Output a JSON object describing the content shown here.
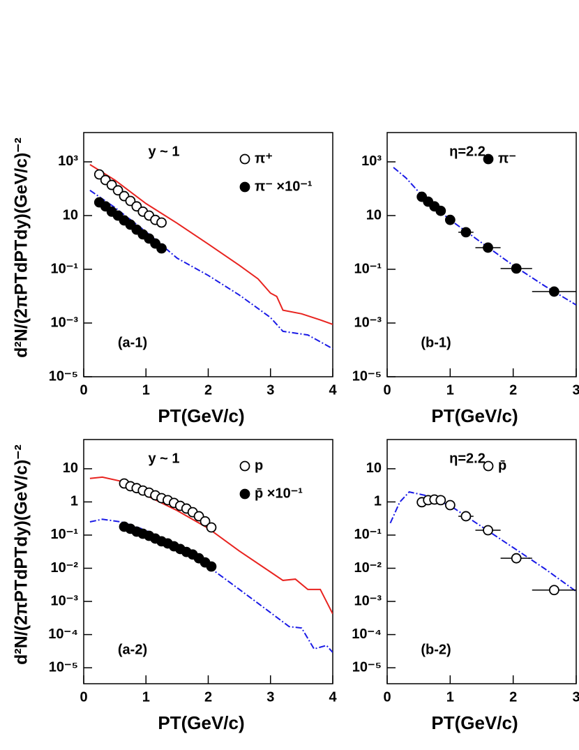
{
  "chart_data": [
    {
      "type": "scatter",
      "log_y": true,
      "xlim": [
        0,
        4
      ],
      "ylim": [
        1e-05,
        12300
      ],
      "xticks": [
        0,
        1,
        2,
        3,
        4
      ],
      "yticks": [
        {
          "value": 1e-05,
          "label": "10⁻⁵"
        },
        {
          "value": 0.001,
          "label": "10⁻³"
        },
        {
          "value": 0.1,
          "label": "10⁻¹"
        },
        10,
        {
          "value": 1000,
          "label": "10³"
        }
      ],
      "xlabel": "PT(GeV/c)",
      "ylabel": "d²N/(2πPTdPTdy)(GeV/c)⁻²",
      "annotations": [
        "y ~ 1",
        "(a-1)"
      ],
      "legend": "upper right",
      "series": [
        {
          "name": "π⁺",
          "marker": "open",
          "color": "#000000",
          "x": [
            0.25,
            0.35,
            0.45,
            0.55,
            0.65,
            0.75,
            0.85,
            0.95,
            1.05,
            1.15,
            1.25
          ],
          "values": [
            340,
            210,
            138,
            87,
            53,
            35,
            22,
            14,
            10,
            6.9,
            5.5
          ]
        },
        {
          "name": "π⁻ ×10⁻¹",
          "marker": "filled",
          "color": "#000000",
          "x": [
            0.25,
            0.35,
            0.45,
            0.55,
            0.65,
            0.75,
            0.85,
            0.95,
            1.05,
            1.15,
            1.25
          ],
          "values": [
            31,
            22,
            14,
            10,
            6.6,
            4.6,
            3.0,
            2.0,
            1.4,
            0.91,
            0.6
          ]
        },
        {
          "linestyle": "solid",
          "color": "#e8231f",
          "x": [
            0.1,
            0.5,
            1,
            1.5,
            2,
            2.5,
            2.8,
            3,
            3.1,
            3.2,
            3.5,
            3.8,
            4
          ],
          "values": [
            790,
            210,
            28,
            5.2,
            0.87,
            0.14,
            0.044,
            0.013,
            0.0098,
            0.003,
            0.0022,
            0.0013,
            0.00089
          ]
        },
        {
          "linestyle": "dashdot",
          "color": "#1a1ae6",
          "x": [
            0.1,
            0.5,
            1,
            1.5,
            2,
            2.5,
            3,
            3.2,
            3.6,
            3.8,
            4
          ],
          "values": [
            87,
            20,
            2.5,
            0.26,
            0.059,
            0.011,
            0.0016,
            0.00049,
            0.00036,
            0.0002,
            0.00011
          ]
        }
      ]
    },
    {
      "type": "scatter",
      "log_y": true,
      "xlim": [
        0,
        3
      ],
      "ylim": [
        1e-05,
        12300
      ],
      "xticks": [
        0,
        1,
        2,
        3
      ],
      "yticks": [
        {
          "value": 1e-05,
          "label": "10⁻⁵"
        },
        {
          "value": 0.001,
          "label": "10⁻³"
        },
        {
          "value": 0.1,
          "label": "10⁻¹"
        },
        10,
        {
          "value": 1000,
          "label": "10³"
        }
      ],
      "xlabel": "PT(GeV/c)",
      "annotations": [
        "η=2.2",
        "(b-1)"
      ],
      "legend": "upper right",
      "series": [
        {
          "name": "π⁻",
          "marker": "filled",
          "color": "#000000",
          "x": [
            0.55,
            0.65,
            0.75,
            0.85,
            1.0,
            1.25,
            1.6,
            2.05,
            2.65
          ],
          "values": [
            50,
            33,
            22,
            15,
            6.9,
            2.4,
            0.64,
            0.107,
            0.0148
          ],
          "xerr": [
            0.05,
            0.05,
            0.05,
            0.05,
            0.05,
            0.12,
            0.2,
            0.25,
            0.35
          ]
        },
        {
          "linestyle": "dashdot",
          "color": "#1a1ae6",
          "x": [
            0.1,
            0.3,
            0.6,
            1,
            1.5,
            2,
            2.5,
            3
          ],
          "values": [
            620,
            250,
            42,
            6.9,
            0.97,
            0.14,
            0.024,
            0.0047
          ]
        }
      ]
    },
    {
      "type": "scatter",
      "log_y": true,
      "xlim": [
        0,
        4
      ],
      "ylim": [
        3.3e-06,
        76
      ],
      "xticks": [
        0,
        1,
        2,
        3,
        4
      ],
      "yticks": [
        {
          "value": 1e-05,
          "label": "10⁻⁵"
        },
        {
          "value": 0.0001,
          "label": "10⁻⁴"
        },
        {
          "value": 0.001,
          "label": "10⁻³"
        },
        {
          "value": 0.01,
          "label": "10⁻²"
        },
        {
          "value": 0.1,
          "label": "10⁻¹"
        },
        1,
        10
      ],
      "xlabel": "PT(GeV/c)",
      "ylabel": "d²N/(2πPTdPTdy)(GeV/c)⁻²",
      "annotations": [
        "y ~ 1",
        "(a-2)"
      ],
      "legend": "upper right",
      "series": [
        {
          "name": "p",
          "marker": "open",
          "color": "#000000",
          "x": [
            0.65,
            0.75,
            0.85,
            0.95,
            1.05,
            1.15,
            1.25,
            1.35,
            1.45,
            1.55,
            1.65,
            1.75,
            1.85,
            1.95,
            2.05
          ],
          "values": [
            3.6,
            2.97,
            2.6,
            2.2,
            1.9,
            1.58,
            1.3,
            1.13,
            0.93,
            0.76,
            0.63,
            0.49,
            0.37,
            0.26,
            0.17
          ]
        },
        {
          "name": "p̄ ×10⁻¹",
          "marker": "filled",
          "color": "#000000",
          "x": [
            0.65,
            0.75,
            0.85,
            0.95,
            1.05,
            1.15,
            1.25,
            1.35,
            1.45,
            1.55,
            1.65,
            1.75,
            1.85,
            1.95,
            2.05
          ],
          "values": [
            0.179,
            0.155,
            0.127,
            0.11,
            0.095,
            0.0785,
            0.065,
            0.056,
            0.046,
            0.038,
            0.031,
            0.026,
            0.02,
            0.015,
            0.0113
          ]
        },
        {
          "linestyle": "solid",
          "color": "#e8231f",
          "x": [
            0.1,
            0.3,
            0.6,
            1,
            1.5,
            2,
            2.5,
            3,
            3.2,
            3.4,
            3.6,
            3.8,
            4
          ],
          "values": [
            5.1,
            5.6,
            4.2,
            1.58,
            0.55,
            0.16,
            0.033,
            0.0077,
            0.0043,
            0.0047,
            0.0023,
            0.0023,
            0.00042
          ]
        },
        {
          "linestyle": "dashdot",
          "color": "#1a1ae6",
          "x": [
            0.1,
            0.3,
            0.6,
            1,
            1.5,
            2,
            2.5,
            3,
            3.3,
            3.5,
            3.7,
            3.9,
            4
          ],
          "values": [
            0.25,
            0.3,
            0.25,
            0.14,
            0.042,
            0.0113,
            0.0023,
            0.00046,
            0.000174,
            0.000158,
            3.7e-05,
            4.7e-05,
            2.9e-05
          ]
        }
      ]
    },
    {
      "type": "scatter",
      "log_y": true,
      "xlim": [
        0,
        3
      ],
      "ylim": [
        3.3e-06,
        76
      ],
      "xticks": [
        0,
        1,
        2,
        3
      ],
      "yticks": [
        {
          "value": 1e-05,
          "label": "10⁻⁵"
        },
        {
          "value": 0.0001,
          "label": "10⁻⁴"
        },
        {
          "value": 0.001,
          "label": "10⁻³"
        },
        {
          "value": 0.01,
          "label": "10⁻²"
        },
        {
          "value": 0.1,
          "label": "10⁻¹"
        },
        1,
        10
      ],
      "xlabel": "PT(GeV/c)",
      "annotations": [
        "η=2.2",
        "(b-2)"
      ],
      "legend": "upper right",
      "series": [
        {
          "name": "p̄",
          "marker": "open",
          "color": "#000000",
          "x": [
            0.55,
            0.65,
            0.75,
            0.85,
            1.0,
            1.25,
            1.6,
            2.05,
            2.65
          ],
          "values": [
            0.98,
            1.13,
            1.18,
            1.13,
            0.8,
            0.37,
            0.14,
            0.02,
            0.0022
          ],
          "xerr": [
            0.05,
            0.05,
            0.05,
            0.05,
            0.05,
            0.12,
            0.2,
            0.25,
            0.35
          ]
        },
        {
          "linestyle": "dashdot",
          "color": "#1a1ae6",
          "x": [
            0.05,
            0.2,
            0.35,
            0.6,
            1,
            1.5,
            2,
            2.5,
            3
          ],
          "values": [
            0.23,
            0.99,
            2.0,
            1.58,
            0.77,
            0.18,
            0.042,
            0.0097,
            0.002
          ]
        }
      ]
    }
  ]
}
